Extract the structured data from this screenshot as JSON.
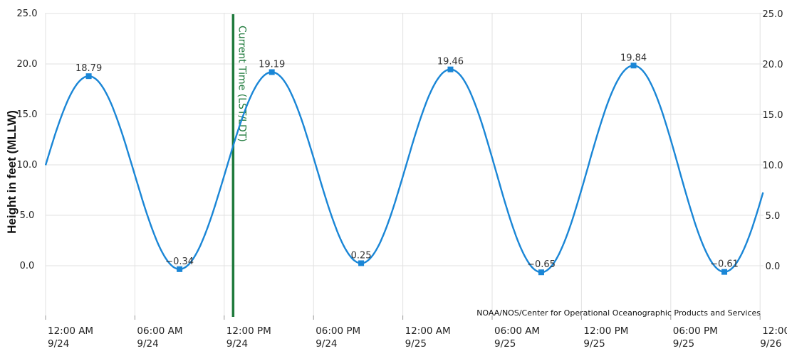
{
  "chart_data": {
    "type": "line",
    "ylabel": "Height in feet (MLLW)",
    "xlabel": "",
    "title": "",
    "ylim": [
      -5,
      25
    ],
    "y_ticks": [
      0,
      5,
      10,
      15,
      20,
      25
    ],
    "y_tick_labels": [
      "0.0",
      "5.0",
      "10.0",
      "15.0",
      "20.0",
      "25.0"
    ],
    "x_range_hours": [
      0,
      72
    ],
    "x_ticks": [
      {
        "hours": 0,
        "time": "12:00 AM",
        "date": "9/24"
      },
      {
        "hours": 6,
        "time": "06:00 AM",
        "date": "9/24"
      },
      {
        "hours": 12,
        "time": "12:00 PM",
        "date": "9/24"
      },
      {
        "hours": 18,
        "time": "06:00 PM",
        "date": "9/24"
      },
      {
        "hours": 24,
        "time": "12:00 AM",
        "date": "9/25"
      },
      {
        "hours": 30,
        "time": "06:00 AM",
        "date": "9/25"
      },
      {
        "hours": 36,
        "time": "12:00 PM",
        "date": "9/25"
      },
      {
        "hours": 42,
        "time": "06:00 PM",
        "date": "9/25"
      },
      {
        "hours": 48,
        "time": "12:00",
        "date": "9/26"
      }
    ],
    "series": [
      {
        "color": "#1a86d6",
        "extremes": [
          {
            "hours": 2.9,
            "value": 18.79,
            "label": "18.79"
          },
          {
            "hours": 9.0,
            "value": -0.34,
            "label": "−0.34"
          },
          {
            "hours": 15.2,
            "value": 19.19,
            "label": "19.19"
          },
          {
            "hours": 21.2,
            "value": 0.25,
            "label": "0.25"
          },
          {
            "hours": 27.2,
            "value": 19.46,
            "label": "19.46"
          },
          {
            "hours": 33.3,
            "value": -0.65,
            "label": "−0.65"
          },
          {
            "hours": 39.5,
            "value": 19.84,
            "label": "19.84"
          },
          {
            "hours": 45.6,
            "value": -0.61,
            "label": "−0.61"
          }
        ]
      }
    ],
    "grid": true,
    "annotations": {
      "current_time_label": "Current Time (LST/LDT)",
      "current_time_hours": 12.6,
      "current_time_color": "#1f7a3c",
      "credit": "NOAA/NOS/Center for Operational Oceanographic Products and Services"
    }
  }
}
